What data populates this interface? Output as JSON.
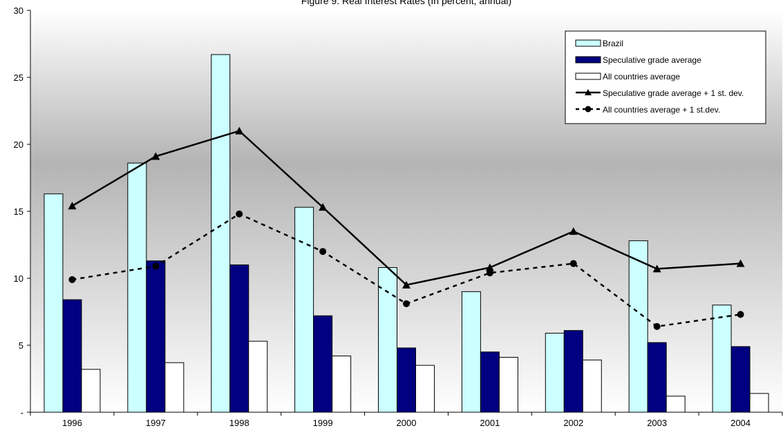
{
  "chart_data": {
    "type": "bar",
    "title": "Figure 9. Real Interest Rates (In percent, annual)",
    "xlabel": "",
    "ylabel": "",
    "categories": [
      "1996",
      "1997",
      "1998",
      "1999",
      "2000",
      "2001",
      "2002",
      "2003",
      "2004"
    ],
    "ylim": [
      0,
      30
    ],
    "yticks": [
      0,
      5,
      10,
      15,
      20,
      25,
      30
    ],
    "ytick_labels": [
      "-",
      "5",
      "10",
      "15",
      "20",
      "25",
      "30"
    ],
    "grid": false,
    "legend_position": "top-right",
    "series": [
      {
        "name": "Brazil",
        "kind": "bar",
        "color": "#ccffff",
        "values": [
          16.3,
          18.6,
          26.7,
          15.3,
          10.8,
          9.0,
          5.9,
          12.8,
          8.0
        ]
      },
      {
        "name": "Speculative grade average",
        "kind": "bar",
        "color": "#000080",
        "values": [
          8.4,
          11.3,
          11.0,
          7.2,
          4.8,
          4.5,
          6.1,
          5.2,
          4.9
        ]
      },
      {
        "name": "All countries average",
        "kind": "bar",
        "color": "#ffffff",
        "values": [
          3.2,
          3.7,
          5.3,
          4.2,
          3.5,
          4.1,
          3.9,
          1.2,
          1.4
        ]
      },
      {
        "name": "Speculative grade average + 1 st. dev.",
        "kind": "line",
        "marker": "triangle",
        "dash": "solid",
        "color": "#000000",
        "values": [
          15.4,
          19.1,
          21.0,
          15.3,
          9.5,
          10.8,
          13.5,
          10.7,
          11.1
        ]
      },
      {
        "name": "All countries average + 1 st.dev.",
        "kind": "line",
        "marker": "circle",
        "dash": "dashed",
        "color": "#000000",
        "values": [
          9.9,
          10.9,
          14.8,
          12.0,
          8.1,
          10.4,
          11.1,
          6.4,
          7.3
        ]
      }
    ]
  }
}
